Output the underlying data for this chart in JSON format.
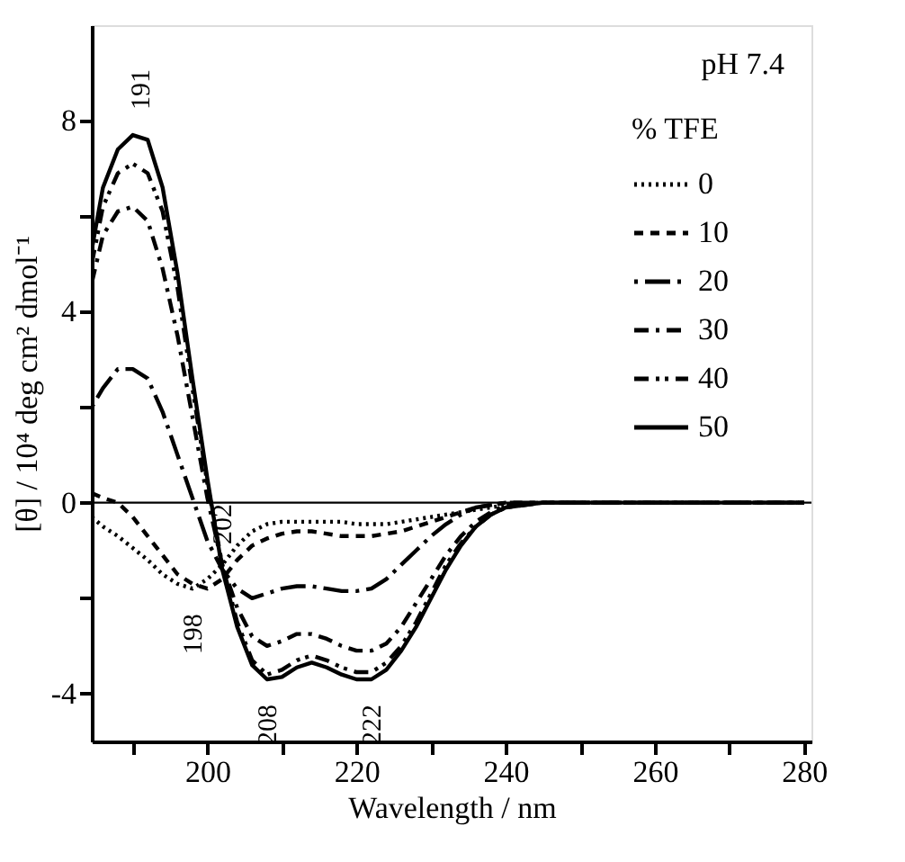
{
  "chart_data": {
    "type": "line",
    "xlabel": "Wavelength / nm",
    "ylabel": "[θ] / 10⁴ deg cm² dmol⁻¹",
    "legend_title": "% TFE",
    "x": [
      184.5,
      186,
      188,
      190,
      192,
      194,
      196,
      198,
      200,
      202,
      204,
      206,
      208,
      210,
      212,
      214,
      216,
      218,
      220,
      222,
      224,
      226,
      228,
      230,
      232,
      234,
      236,
      238,
      240,
      245,
      250,
      260,
      280
    ],
    "series": [
      {
        "name": "0",
        "color": "#000000",
        "line_style": "dotted",
        "values": [
          -0.3,
          -0.5,
          -0.7,
          -0.95,
          -1.2,
          -1.5,
          -1.7,
          -1.8,
          -1.6,
          -1.3,
          -0.9,
          -0.6,
          -0.45,
          -0.4,
          -0.4,
          -0.4,
          -0.4,
          -0.4,
          -0.45,
          -0.45,
          -0.45,
          -0.4,
          -0.35,
          -0.3,
          -0.25,
          -0.2,
          -0.15,
          -0.1,
          -0.05,
          0,
          0,
          0,
          0
        ]
      },
      {
        "name": "10",
        "color": "#000000",
        "line_style": "dashed",
        "values": [
          0.2,
          0.1,
          0.0,
          -0.3,
          -0.7,
          -1.1,
          -1.5,
          -1.7,
          -1.8,
          -1.6,
          -1.2,
          -0.9,
          -0.75,
          -0.65,
          -0.6,
          -0.6,
          -0.65,
          -0.7,
          -0.7,
          -0.7,
          -0.65,
          -0.6,
          -0.5,
          -0.4,
          -0.3,
          -0.2,
          -0.1,
          -0.05,
          0,
          0,
          0,
          0,
          0
        ]
      },
      {
        "name": "20",
        "color": "#000000",
        "line_style": "longdash",
        "values": [
          2.0,
          2.4,
          2.8,
          2.8,
          2.6,
          1.9,
          1.0,
          0.1,
          -0.8,
          -1.4,
          -1.8,
          -2.0,
          -1.9,
          -1.8,
          -1.75,
          -1.75,
          -1.8,
          -1.85,
          -1.85,
          -1.8,
          -1.6,
          -1.3,
          -1.0,
          -0.7,
          -0.45,
          -0.25,
          -0.1,
          -0.05,
          0,
          0,
          0,
          0,
          0
        ]
      },
      {
        "name": "30",
        "color": "#000000",
        "line_style": "dashdot",
        "values": [
          4.6,
          5.6,
          6.1,
          6.2,
          5.9,
          4.9,
          3.5,
          1.8,
          0.1,
          -1.3,
          -2.2,
          -2.8,
          -3.0,
          -2.9,
          -2.75,
          -2.75,
          -2.85,
          -3.0,
          -3.1,
          -3.1,
          -2.95,
          -2.6,
          -2.1,
          -1.6,
          -1.1,
          -0.7,
          -0.4,
          -0.2,
          -0.05,
          0,
          0,
          0,
          0
        ]
      },
      {
        "name": "40",
        "color": "#000000",
        "line_style": "dashdotdot",
        "values": [
          5.0,
          6.2,
          6.9,
          7.1,
          6.9,
          6.1,
          4.5,
          2.4,
          0.4,
          -1.3,
          -2.5,
          -3.3,
          -3.6,
          -3.5,
          -3.3,
          -3.2,
          -3.3,
          -3.45,
          -3.55,
          -3.55,
          -3.35,
          -3.0,
          -2.5,
          -1.9,
          -1.3,
          -0.85,
          -0.5,
          -0.25,
          -0.1,
          0,
          0,
          0,
          0
        ]
      },
      {
        "name": "50",
        "color": "#000000",
        "line_style": "solid",
        "values": [
          5.3,
          6.6,
          7.4,
          7.7,
          7.6,
          6.6,
          4.8,
          2.6,
          0.5,
          -1.4,
          -2.6,
          -3.4,
          -3.7,
          -3.65,
          -3.45,
          -3.35,
          -3.45,
          -3.6,
          -3.7,
          -3.7,
          -3.5,
          -3.1,
          -2.6,
          -2.0,
          -1.4,
          -0.9,
          -0.5,
          -0.25,
          -0.1,
          0,
          0,
          0,
          0
        ]
      }
    ],
    "xlim": [
      184.5,
      281
    ],
    "xticks": [
      {
        "value": 190,
        "label": null
      },
      200,
      {
        "value": 210,
        "label": null
      },
      220,
      {
        "value": 230,
        "label": null
      },
      240,
      {
        "value": 250,
        "label": null
      },
      260,
      {
        "value": 270,
        "label": null
      },
      280
    ],
    "ylim": [
      -5,
      10
    ],
    "yticks": [
      -4,
      {
        "value": -2,
        "label": null
      },
      0,
      {
        "value": 2,
        "label": null
      },
      4,
      {
        "value": 6,
        "label": null
      },
      8
    ],
    "ref_lines": [
      {
        "axis": "y",
        "value": 0,
        "color": "#000000",
        "line_style": "solid"
      }
    ],
    "annotations": [
      "pH 7.4",
      {
        "text": "191",
        "x": 191,
        "y": 7.7
      },
      {
        "text": "202",
        "x": 202,
        "y": -1.4
      },
      {
        "text": "198",
        "x": 198,
        "y": -1.8
      },
      {
        "text": "208",
        "x": 208,
        "y": -3.7
      },
      {
        "text": "222",
        "x": 222,
        "y": -3.7
      }
    ],
    "grid": false,
    "legend": "top right"
  }
}
